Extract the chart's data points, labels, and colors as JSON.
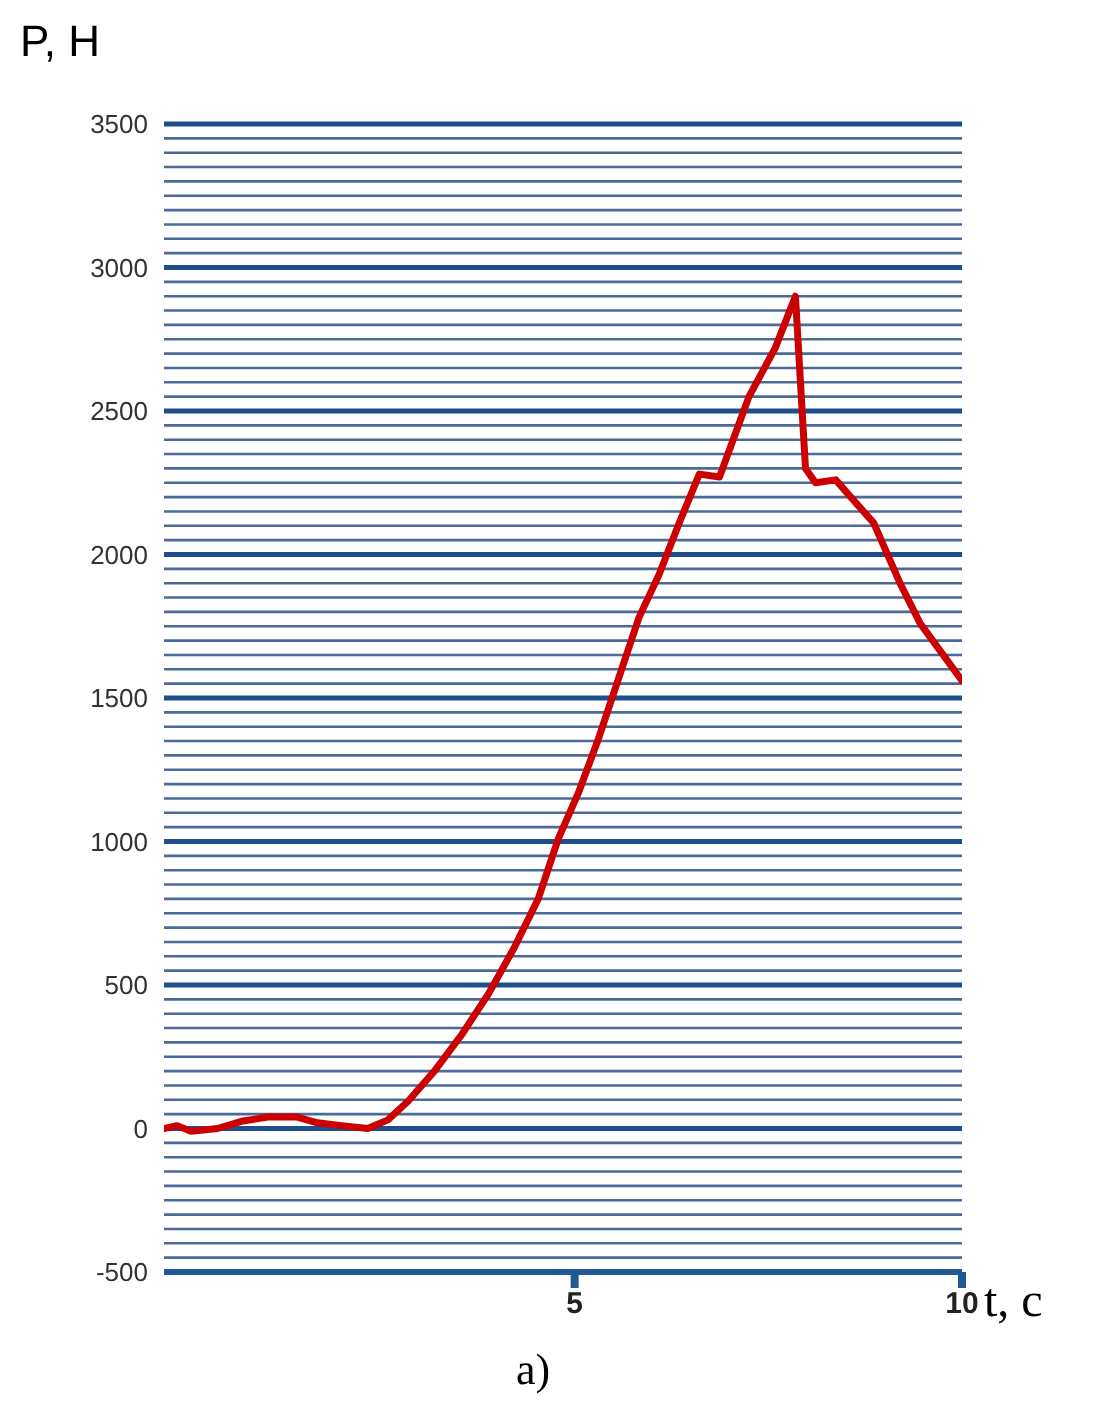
{
  "chart_data": {
    "type": "line",
    "xlabel": "t, c",
    "ylabel": "P, H",
    "annotations": [
      "a)"
    ],
    "x": [
      -0.3,
      -0.13,
      0.05,
      0.39,
      0.7,
      1.04,
      1.42,
      1.68,
      1.99,
      2.33,
      2.59,
      2.85,
      3.19,
      3.55,
      3.89,
      4.22,
      4.53,
      4.79,
      5.05,
      5.31,
      5.57,
      5.83,
      6.09,
      6.35,
      6.61,
      6.87,
      7.25,
      7.59,
      7.85,
      7.98,
      8.11,
      8.37,
      8.63,
      8.86,
      9.2,
      9.46,
      10
    ],
    "series": [
      {
        "color": "#cc0000",
        "values": [
          0,
          10,
          -10,
          0,
          25,
          40,
          40,
          20,
          10,
          0,
          30,
          95,
          200,
          330,
          470,
          630,
          800,
          1010,
          1170,
          1360,
          1570,
          1780,
          1930,
          2110,
          2280,
          2270,
          2550,
          2720,
          2900,
          2300,
          2250,
          2260,
          2180,
          2110,
          1900,
          1760,
          1560
        ]
      }
    ],
    "xlim": [
      -0.3,
      10
    ],
    "xticks": [
      5,
      10
    ],
    "ylim": [
      -500,
      3500
    ],
    "yticks": [
      {
        "value": -500,
        "label": "-500"
      },
      {
        "value": -450,
        "label": null
      },
      {
        "value": -400,
        "label": null
      },
      {
        "value": -350,
        "label": null
      },
      {
        "value": -300,
        "label": null
      },
      {
        "value": -250,
        "label": null
      },
      {
        "value": -200,
        "label": null
      },
      {
        "value": -150,
        "label": null
      },
      {
        "value": -100,
        "label": null
      },
      {
        "value": -50,
        "label": null
      },
      {
        "value": 0,
        "label": "0"
      },
      {
        "value": 50,
        "label": null
      },
      {
        "value": 100,
        "label": null
      },
      {
        "value": 150,
        "label": null
      },
      {
        "value": 200,
        "label": null
      },
      {
        "value": 250,
        "label": null
      },
      {
        "value": 300,
        "label": null
      },
      {
        "value": 350,
        "label": null
      },
      {
        "value": 400,
        "label": null
      },
      {
        "value": 450,
        "label": null
      },
      {
        "value": 500,
        "label": "500"
      },
      {
        "value": 550,
        "label": null
      },
      {
        "value": 600,
        "label": null
      },
      {
        "value": 650,
        "label": null
      },
      {
        "value": 700,
        "label": null
      },
      {
        "value": 750,
        "label": null
      },
      {
        "value": 800,
        "label": null
      },
      {
        "value": 850,
        "label": null
      },
      {
        "value": 900,
        "label": null
      },
      {
        "value": 950,
        "label": null
      },
      {
        "value": 1000,
        "label": "1000"
      },
      {
        "value": 1050,
        "label": null
      },
      {
        "value": 1100,
        "label": null
      },
      {
        "value": 1150,
        "label": null
      },
      {
        "value": 1200,
        "label": null
      },
      {
        "value": 1250,
        "label": null
      },
      {
        "value": 1300,
        "label": null
      },
      {
        "value": 1350,
        "label": null
      },
      {
        "value": 1400,
        "label": null
      },
      {
        "value": 1450,
        "label": null
      },
      {
        "value": 1500,
        "label": "1500"
      },
      {
        "value": 1550,
        "label": null
      },
      {
        "value": 1600,
        "label": null
      },
      {
        "value": 1650,
        "label": null
      },
      {
        "value": 1700,
        "label": null
      },
      {
        "value": 1750,
        "label": null
      },
      {
        "value": 1800,
        "label": null
      },
      {
        "value": 1850,
        "label": null
      },
      {
        "value": 1900,
        "label": null
      },
      {
        "value": 1950,
        "label": null
      },
      {
        "value": 2000,
        "label": "2000"
      },
      {
        "value": 2050,
        "label": null
      },
      {
        "value": 2100,
        "label": null
      },
      {
        "value": 2150,
        "label": null
      },
      {
        "value": 2200,
        "label": null
      },
      {
        "value": 2250,
        "label": null
      },
      {
        "value": 2300,
        "label": null
      },
      {
        "value": 2350,
        "label": null
      },
      {
        "value": 2400,
        "label": null
      },
      {
        "value": 2450,
        "label": null
      },
      {
        "value": 2500,
        "label": "2500"
      },
      {
        "value": 2550,
        "label": null
      },
      {
        "value": 2600,
        "label": null
      },
      {
        "value": 2650,
        "label": null
      },
      {
        "value": 2700,
        "label": null
      },
      {
        "value": 2750,
        "label": null
      },
      {
        "value": 2800,
        "label": null
      },
      {
        "value": 2850,
        "label": null
      },
      {
        "value": 2900,
        "label": null
      },
      {
        "value": 2950,
        "label": null
      },
      {
        "value": 3000,
        "label": "3000"
      },
      {
        "value": 3050,
        "label": null
      },
      {
        "value": 3100,
        "label": null
      },
      {
        "value": 3150,
        "label": null
      },
      {
        "value": 3200,
        "label": null
      },
      {
        "value": 3250,
        "label": null
      },
      {
        "value": 3300,
        "label": null
      },
      {
        "value": 3350,
        "label": null
      },
      {
        "value": 3400,
        "label": null
      },
      {
        "value": 3450,
        "label": null
      },
      {
        "value": 3500,
        "label": "3500"
      }
    ],
    "grid": "y",
    "marker": "none",
    "line_style": "solid"
  }
}
